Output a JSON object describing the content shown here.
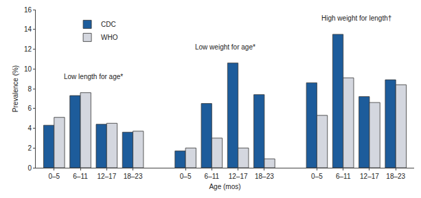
{
  "chart_data": {
    "type": "bar",
    "x_label": "Age (mos)",
    "y_label": "Prevalence (%)",
    "categories": [
      "0–5",
      "6–11",
      "12–17",
      "18–23",
      "0–5",
      "6–11",
      "12–17",
      "18–23",
      "0–5",
      "6–11",
      "12–17",
      "18–23"
    ],
    "series": [
      {
        "name": "CDC",
        "color": "#1d5c9b",
        "values": [
          4.3,
          7.3,
          4.4,
          3.6,
          1.7,
          6.5,
          10.6,
          7.4,
          8.6,
          13.5,
          7.2,
          8.9
        ]
      },
      {
        "name": "WHO",
        "color": "#d4d7df",
        "values": [
          5.1,
          7.6,
          4.5,
          3.7,
          2.0,
          3.0,
          2.0,
          0.9,
          5.3,
          9.1,
          6.6,
          8.4
        ]
      }
    ],
    "annotations": [
      "Low length for age*",
      "Low weight for age*",
      "High weight for length†"
    ],
    "ylim": [
      0,
      16
    ],
    "yticks": [
      0,
      2,
      4,
      6,
      8,
      10,
      12,
      14,
      16
    ],
    "grid": false,
    "legend": "upper left"
  }
}
